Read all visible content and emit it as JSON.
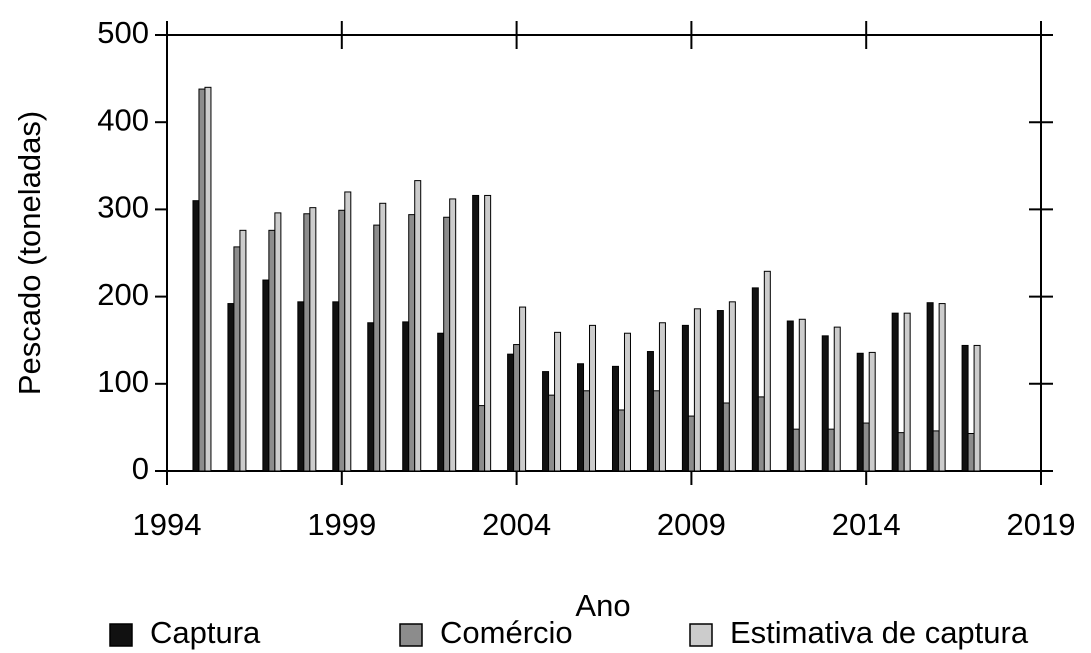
{
  "chart_data": {
    "type": "bar",
    "x_label": "Ano",
    "y_label": "Pescado (toneladas)",
    "x": [
      1995,
      1996,
      1997,
      1998,
      1999,
      2000,
      2001,
      2002,
      2003,
      2004,
      2005,
      2006,
      2007,
      2008,
      2009,
      2010,
      2011,
      2012,
      2013,
      2014,
      2015,
      2016,
      2017
    ],
    "series": [
      {
        "name": "Captura",
        "color": "#111111",
        "values": [
          310,
          192,
          219,
          194,
          194,
          170,
          171,
          158,
          316,
          134,
          114,
          123,
          120,
          137,
          167,
          184,
          210,
          172,
          155,
          135,
          181,
          193,
          144
        ]
      },
      {
        "name": "Comércio",
        "color": "#8c8c8c",
        "values": [
          438,
          257,
          276,
          295,
          299,
          282,
          294,
          291,
          75,
          145,
          87,
          92,
          70,
          92,
          63,
          78,
          85,
          48,
          48,
          55,
          44,
          46,
          43
        ]
      },
      {
        "name": "Estimativa de captura",
        "color": "#cccccc",
        "values": [
          440,
          276,
          296,
          302,
          320,
          307,
          333,
          312,
          316,
          188,
          159,
          167,
          158,
          170,
          186,
          194,
          229,
          174,
          165,
          136,
          181,
          192,
          144
        ]
      }
    ],
    "xlim": [
      1994,
      2019
    ],
    "xticks": [
      1994,
      1999,
      2004,
      2009,
      2014,
      2019
    ],
    "ylim": [
      0,
      500
    ],
    "yticks": [
      0,
      100,
      200,
      300,
      400,
      500
    ]
  }
}
